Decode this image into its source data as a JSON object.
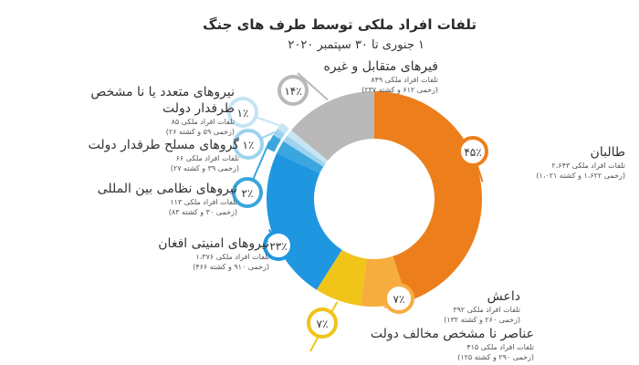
{
  "title": "تلفات افراد ملکی توسط طرف های جنگ",
  "subtitle": "۱ جنوری تا ۳۰ سپتمبر ۲۰۲۰",
  "chart_data": {
    "type": "pie",
    "title": "تلفات افراد ملکی توسط طرف های جنگ",
    "subtitle": "۱ جنوری تا ۳۰ سپتمبر ۲۰۲۰",
    "slices": [
      {
        "label": "طالبان",
        "percent": 45,
        "percent_label": "۴۵٪",
        "value": 2643,
        "casualties_text": "تلفات افراد ملکی ۲،۶۴۳",
        "detail_text": "(زخمی ۱،۶۲۲ و کشته ۱،۰۲۱)",
        "color": "#ec7f1c"
      },
      {
        "label": "داعش",
        "percent": 7,
        "percent_label": "۷٪",
        "value": 392,
        "casualties_text": "تلفات افراد ملکی ۳۹۲",
        "detail_text": "(زخمی ۲۶۰ و کشته ۱۳۲)",
        "color": "#f6ad3e"
      },
      {
        "label": "عناصر نا مشخص مخالف دولت",
        "percent": 7,
        "percent_label": "۷٪",
        "value": 415,
        "casualties_text": "تلفات افراد ملکی ۴۱۵",
        "detail_text": "(زخمی ۲۹۰ و کشته ۱۲۵)",
        "color": "#f0c419"
      },
      {
        "label": "نیروهای امنیتی افغان",
        "percent": 23,
        "percent_label": "۲۳٪",
        "value": 1376,
        "casualties_text": "تلفات افراد ملکی ۱،۳۷۶",
        "detail_text": "(زخمی ۹۱۰ و کشته ۴۶۶)",
        "color": "#1f97e0"
      },
      {
        "label": "نیروهای نظامی بین المللی",
        "percent": 2,
        "percent_label": "۲٪",
        "value": 113,
        "casualties_text": "تلفات افراد ملکی ۱۱۳",
        "detail_text": "(زخمی ۳۰ و کشته ۸۳)",
        "color": "#3aa6dd"
      },
      {
        "label": "گروهای مسلح طرفدار دولت",
        "percent": 1,
        "percent_label": "۱٪",
        "value": 66,
        "casualties_text": "تلفات افراد ملکی ۶۶",
        "detail_text": "(زخمی ۳۹ و کشته ۲۷)",
        "color": "#9dd3ee"
      },
      {
        "label": "نیروهای متعدد یا نا مشخص طرفدار دولت",
        "label_lines": [
          "نیروهای متعدد یا نا مشخص",
          "طرفدار دولت"
        ],
        "percent": 1,
        "percent_label": "۱٪",
        "value": 85,
        "casualties_text": "تلفات افراد ملکی ۸۵",
        "detail_text": "(زخمی ۵۹ و کشته ۲۶)",
        "color": "#c6e4f3"
      },
      {
        "label": "فیرهای متقابل و غیره",
        "label_lines": [
          "فیرهای متقابل و غیره"
        ],
        "percent": 14,
        "percent_label": "۱۴٪",
        "value": 849,
        "casualties_text": "تلفات افراد ملکی ۸۴۹",
        "detail_text": "(زخمی ۶۱۲ و کشته ۲۳۷)",
        "color": "#b9b9b9"
      }
    ]
  }
}
